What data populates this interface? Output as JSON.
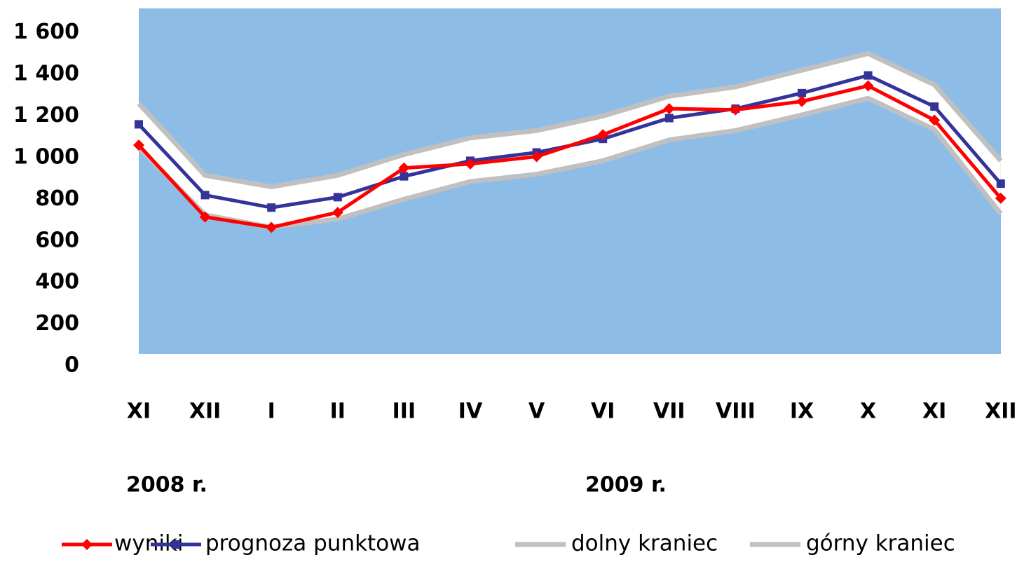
{
  "chart_data": {
    "type": "line",
    "categories": [
      "XI",
      "XII",
      "I",
      "II",
      "III",
      "IV",
      "V",
      "VI",
      "VII",
      "VIII",
      "IX",
      "X",
      "XI",
      "XII"
    ],
    "year_labels": [
      "2008 r.",
      "2009 r."
    ],
    "series": [
      {
        "name": "wyniki",
        "color": "#ff0000",
        "marker": "diamond",
        "values": [
          1060,
          715,
          665,
          737,
          950,
          970,
          1005,
          1110,
          1235,
          1230,
          1270,
          1345,
          1180,
          805
        ]
      },
      {
        "name": "prognoza punktowa",
        "color": "#333399",
        "marker": "square",
        "values": [
          1160,
          820,
          760,
          810,
          910,
          985,
          1025,
          1090,
          1190,
          1235,
          1310,
          1395,
          1245,
          875
        ]
      },
      {
        "name": "dolny kraniec",
        "color": "#c0c0c0",
        "values": [
          1050,
          725,
          665,
          705,
          800,
          885,
          920,
          985,
          1085,
          1130,
          1205,
          1285,
          1135,
          730
        ]
      },
      {
        "name": "górny kraniec",
        "color": "#c0c0c0",
        "values": [
          1260,
          915,
          860,
          915,
          1015,
          1095,
          1130,
          1200,
          1295,
          1340,
          1420,
          1500,
          1350,
          985
        ]
      }
    ],
    "ylim": [
      0,
      1700
    ],
    "yticks": [
      0,
      200,
      400,
      600,
      800,
      {
        "value": 1000,
        "label": "1 000"
      },
      {
        "value": 1200,
        "label": "1 200"
      },
      {
        "value": 1400,
        "label": "1 400"
      },
      {
        "value": 1600,
        "label": "1 600"
      }
    ],
    "plot_background": "#8dbde6",
    "band_fill": "#ffffff"
  }
}
